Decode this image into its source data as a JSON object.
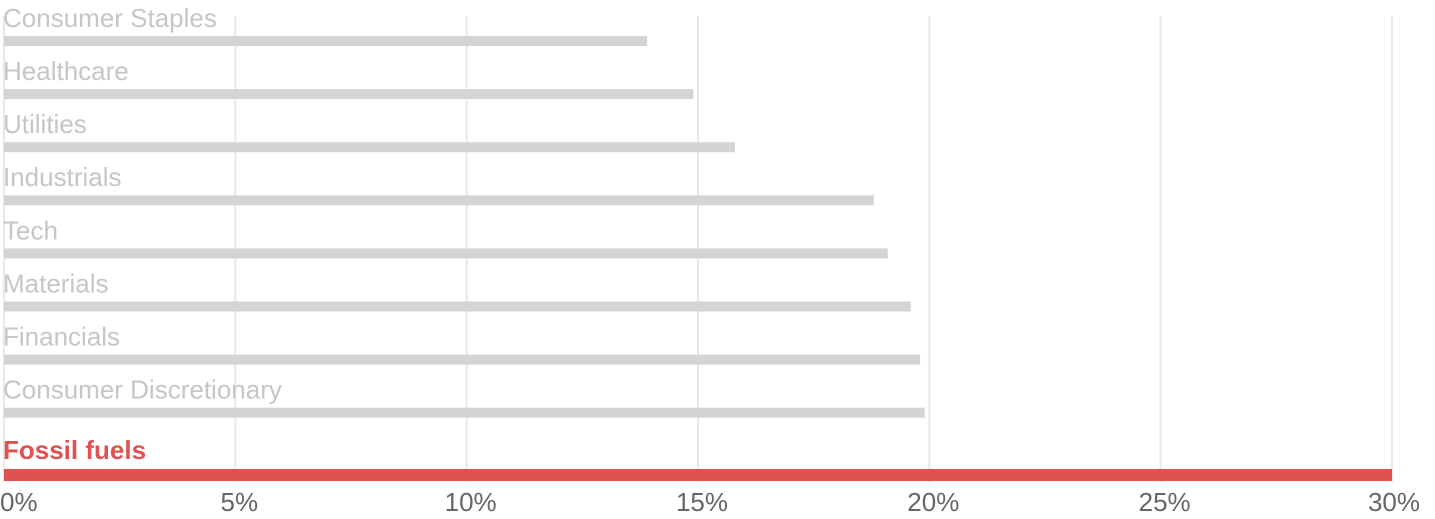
{
  "chart_data": {
    "type": "bar",
    "orientation": "horizontal",
    "categories": [
      "Consumer Staples",
      "Healthcare",
      "Utilities",
      "Industrials",
      "Tech",
      "Materials",
      "Financials",
      "Consumer Discretionary",
      "Fossil fuels"
    ],
    "values": [
      13.9,
      14.9,
      15.8,
      18.8,
      19.1,
      19.6,
      19.8,
      19.9,
      30
    ],
    "colors": [
      "#d4d4d2",
      "#d4d4d2",
      "#d4d4d2",
      "#d4d4d2",
      "#d4d4d2",
      "#d4d4d2",
      "#d4d4d2",
      "#d4d4d2",
      "#e05252"
    ],
    "xlim": [
      0,
      30
    ],
    "xticks": [
      {
        "value": 0,
        "label": "0%"
      },
      {
        "value": 5,
        "label": "5%"
      },
      {
        "value": 10,
        "label": "10%"
      },
      {
        "value": 15,
        "label": "15%"
      },
      {
        "value": 20,
        "label": "20%"
      },
      {
        "value": 25,
        "label": "25%"
      },
      {
        "value": 30,
        "label": "30%"
      }
    ],
    "grid": true
  }
}
